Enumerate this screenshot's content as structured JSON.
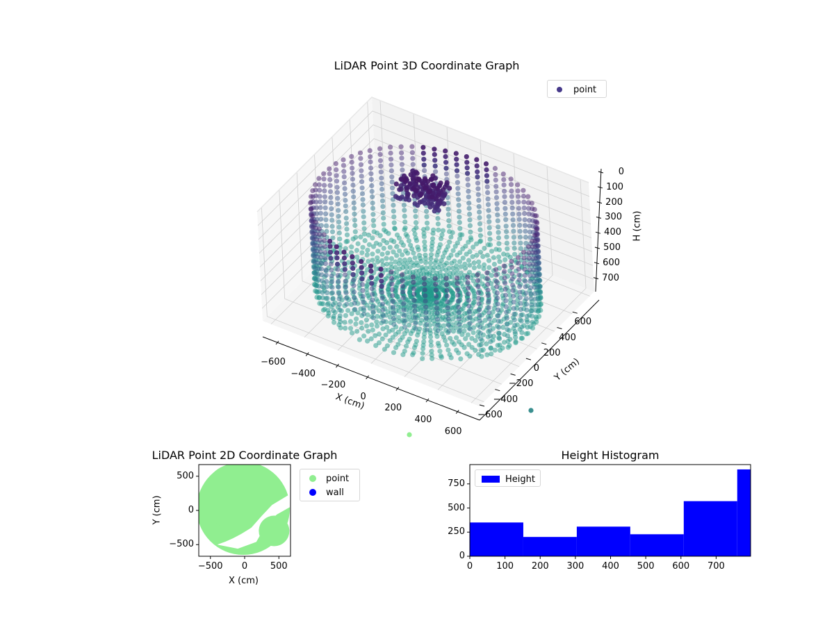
{
  "chart_data": [
    {
      "type": "scatter3d",
      "title": "LiDAR Point 3D Coordinate Graph",
      "xlabel": "X (cm)",
      "ylabel": "Y (cm)",
      "zlabel": "H (cm)",
      "x_ticks": [
        -600,
        -400,
        -200,
        0,
        200,
        400,
        600
      ],
      "y_ticks": [
        -600,
        -400,
        -200,
        0,
        200,
        400,
        600
      ],
      "z_ticks": [
        0,
        100,
        200,
        300,
        400,
        500,
        600,
        700
      ],
      "z_inverted": true,
      "xlim": [
        -650,
        650
      ],
      "ylim": [
        -650,
        650
      ],
      "zlim": [
        0,
        790
      ],
      "legend": [
        {
          "label": "point",
          "color": "#46398a"
        }
      ],
      "colormap": "viridis (by height: dark purple near H=0, teal near H=700)",
      "description": "Points form a cylindrical room wall of radius ~600 cm from H≈100 to H≈700, a radial floor pattern near H≈700, and a dense dark cluster near the ceiling around X≈-100, Y≈200, H≈150."
    },
    {
      "type": "scatter",
      "title": "LiDAR Point 2D Coordinate Graph",
      "xlabel": "X (cm)",
      "ylabel": "Y (cm)",
      "x_ticks": [
        -500,
        0,
        500
      ],
      "y_ticks": [
        -500,
        0,
        500
      ],
      "xlim": [
        -670,
        670
      ],
      "ylim": [
        -670,
        670
      ],
      "legend": [
        {
          "label": "point",
          "color": "#90ee90"
        },
        {
          "label": "wall",
          "color": "#0000ff"
        }
      ],
      "description": "Dense light-green filled disc of radius ~650 cm with a white diagonal gap running from lower-center toward the right edge."
    },
    {
      "type": "bar",
      "title": "Height Histogram",
      "xlabel": "",
      "ylabel": "",
      "bin_edges": [
        0,
        152,
        304,
        456,
        608,
        760,
        798
      ],
      "values": [
        350,
        200,
        307,
        228,
        571,
        900
      ],
      "x_ticks": [
        0,
        100,
        200,
        300,
        400,
        500,
        600,
        700
      ],
      "y_ticks": [
        0,
        250,
        500,
        750
      ],
      "xlim": [
        0,
        798
      ],
      "ylim": [
        0,
        950
      ],
      "legend": [
        {
          "label": "Height",
          "color": "#0000ff"
        }
      ],
      "color": "#0000ff"
    }
  ],
  "labels": {
    "title3d": "LiDAR Point 3D Coordinate Graph",
    "legend3d": "point",
    "xlabel3d": "X (cm)",
    "ylabel3d": "Y (cm)",
    "zlabel3d": "H (cm)",
    "title2d": "LiDAR Point 2D Coordinate Graph",
    "legend2d_point": "point",
    "legend2d_wall": "wall",
    "xlabel2d": "X (cm)",
    "ylabel2d": "Y (cm)",
    "titleHist": "Height Histogram",
    "legendHist": "Height"
  }
}
